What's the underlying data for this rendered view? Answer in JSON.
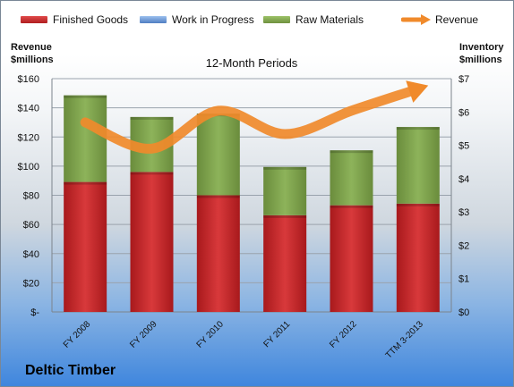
{
  "company": "Deltic Timber",
  "chart_data": {
    "type": "bar",
    "title": "12-Month Periods",
    "ylabel_left": "Revenue $millions",
    "ylabel_right": "Inventory $millions",
    "categories": [
      "FY 2008",
      "FY 2009",
      "FY 2010",
      "FY 2011",
      "FY 2012",
      "TTM 3-2013"
    ],
    "series": [
      {
        "name": "Finished Goods",
        "kind": "bar",
        "axis": "right",
        "color": "#c0282a",
        "values": [
          3.9,
          4.2,
          3.5,
          2.9,
          3.2,
          3.25
        ]
      },
      {
        "name": "Work in Progress",
        "kind": "bar",
        "axis": "right",
        "color": "#5b86c9",
        "values": [
          0,
          0,
          0,
          0,
          0,
          0
        ]
      },
      {
        "name": "Raw Materials",
        "kind": "bar",
        "axis": "right",
        "color": "#7fa24a",
        "values": [
          2.6,
          1.65,
          2.45,
          1.45,
          1.65,
          2.3
        ]
      },
      {
        "name": "Revenue",
        "kind": "line",
        "axis": "left",
        "color": "#f08a2b",
        "values": [
          130,
          112,
          138,
          122,
          138,
          153
        ]
      }
    ],
    "left_axis": {
      "min": 0,
      "max": 160,
      "ticks": [
        "$-",
        "$20",
        "$40",
        "$60",
        "$80",
        "$100",
        "$120",
        "$140",
        "$160"
      ]
    },
    "right_axis": {
      "min": 0,
      "max": 7,
      "ticks": [
        "$0",
        "$1",
        "$2",
        "$3",
        "$4",
        "$5",
        "$6",
        "$7"
      ]
    },
    "grid": true,
    "legend": "top"
  }
}
